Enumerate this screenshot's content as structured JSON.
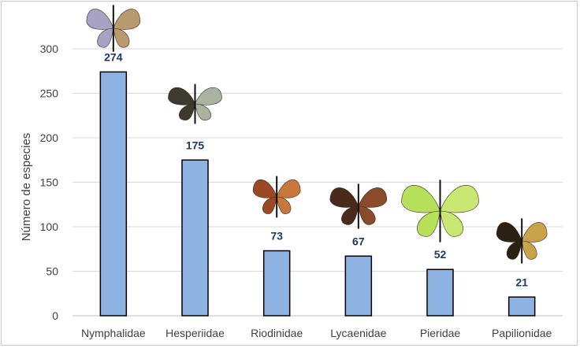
{
  "chart_data": {
    "type": "bar",
    "categories": [
      "Nymphalidae",
      "Hesperiidae",
      "Riodinidae",
      "Lycaenidae",
      "Pieridae",
      "Papilionidae"
    ],
    "values": [
      274,
      175,
      73,
      67,
      52,
      21
    ],
    "title": "",
    "xlabel": "",
    "ylabel": "Número de especies",
    "ylim": [
      0,
      300
    ],
    "yticks": [
      0,
      50,
      100,
      150,
      200,
      250,
      300
    ],
    "grid": true,
    "legend": "none",
    "bar_fill": "#8db3e2",
    "bar_stroke": "#000000",
    "label_color": "#1f3864",
    "butterfly_images": [
      {
        "category": "Nymphalidae",
        "icon": "butterfly-photo",
        "colors": [
          "#a7a3c4",
          "#b89a6e"
        ]
      },
      {
        "category": "Hesperiidae",
        "icon": "butterfly-photo",
        "colors": [
          "#3f3a2e",
          "#a9b3a0"
        ]
      },
      {
        "category": "Riodinidae",
        "icon": "butterfly-photo",
        "colors": [
          "#9a4a22",
          "#c8783c"
        ]
      },
      {
        "category": "Lycaenidae",
        "icon": "butterfly-photo",
        "colors": [
          "#4a2a1a",
          "#8a4a2c"
        ]
      },
      {
        "category": "Pieridae",
        "icon": "butterfly-photo",
        "colors": [
          "#b7e05a",
          "#c9e873"
        ]
      },
      {
        "category": "Papilionidae",
        "icon": "butterfly-photo",
        "colors": [
          "#2a2014",
          "#c9a34a"
        ]
      }
    ]
  }
}
